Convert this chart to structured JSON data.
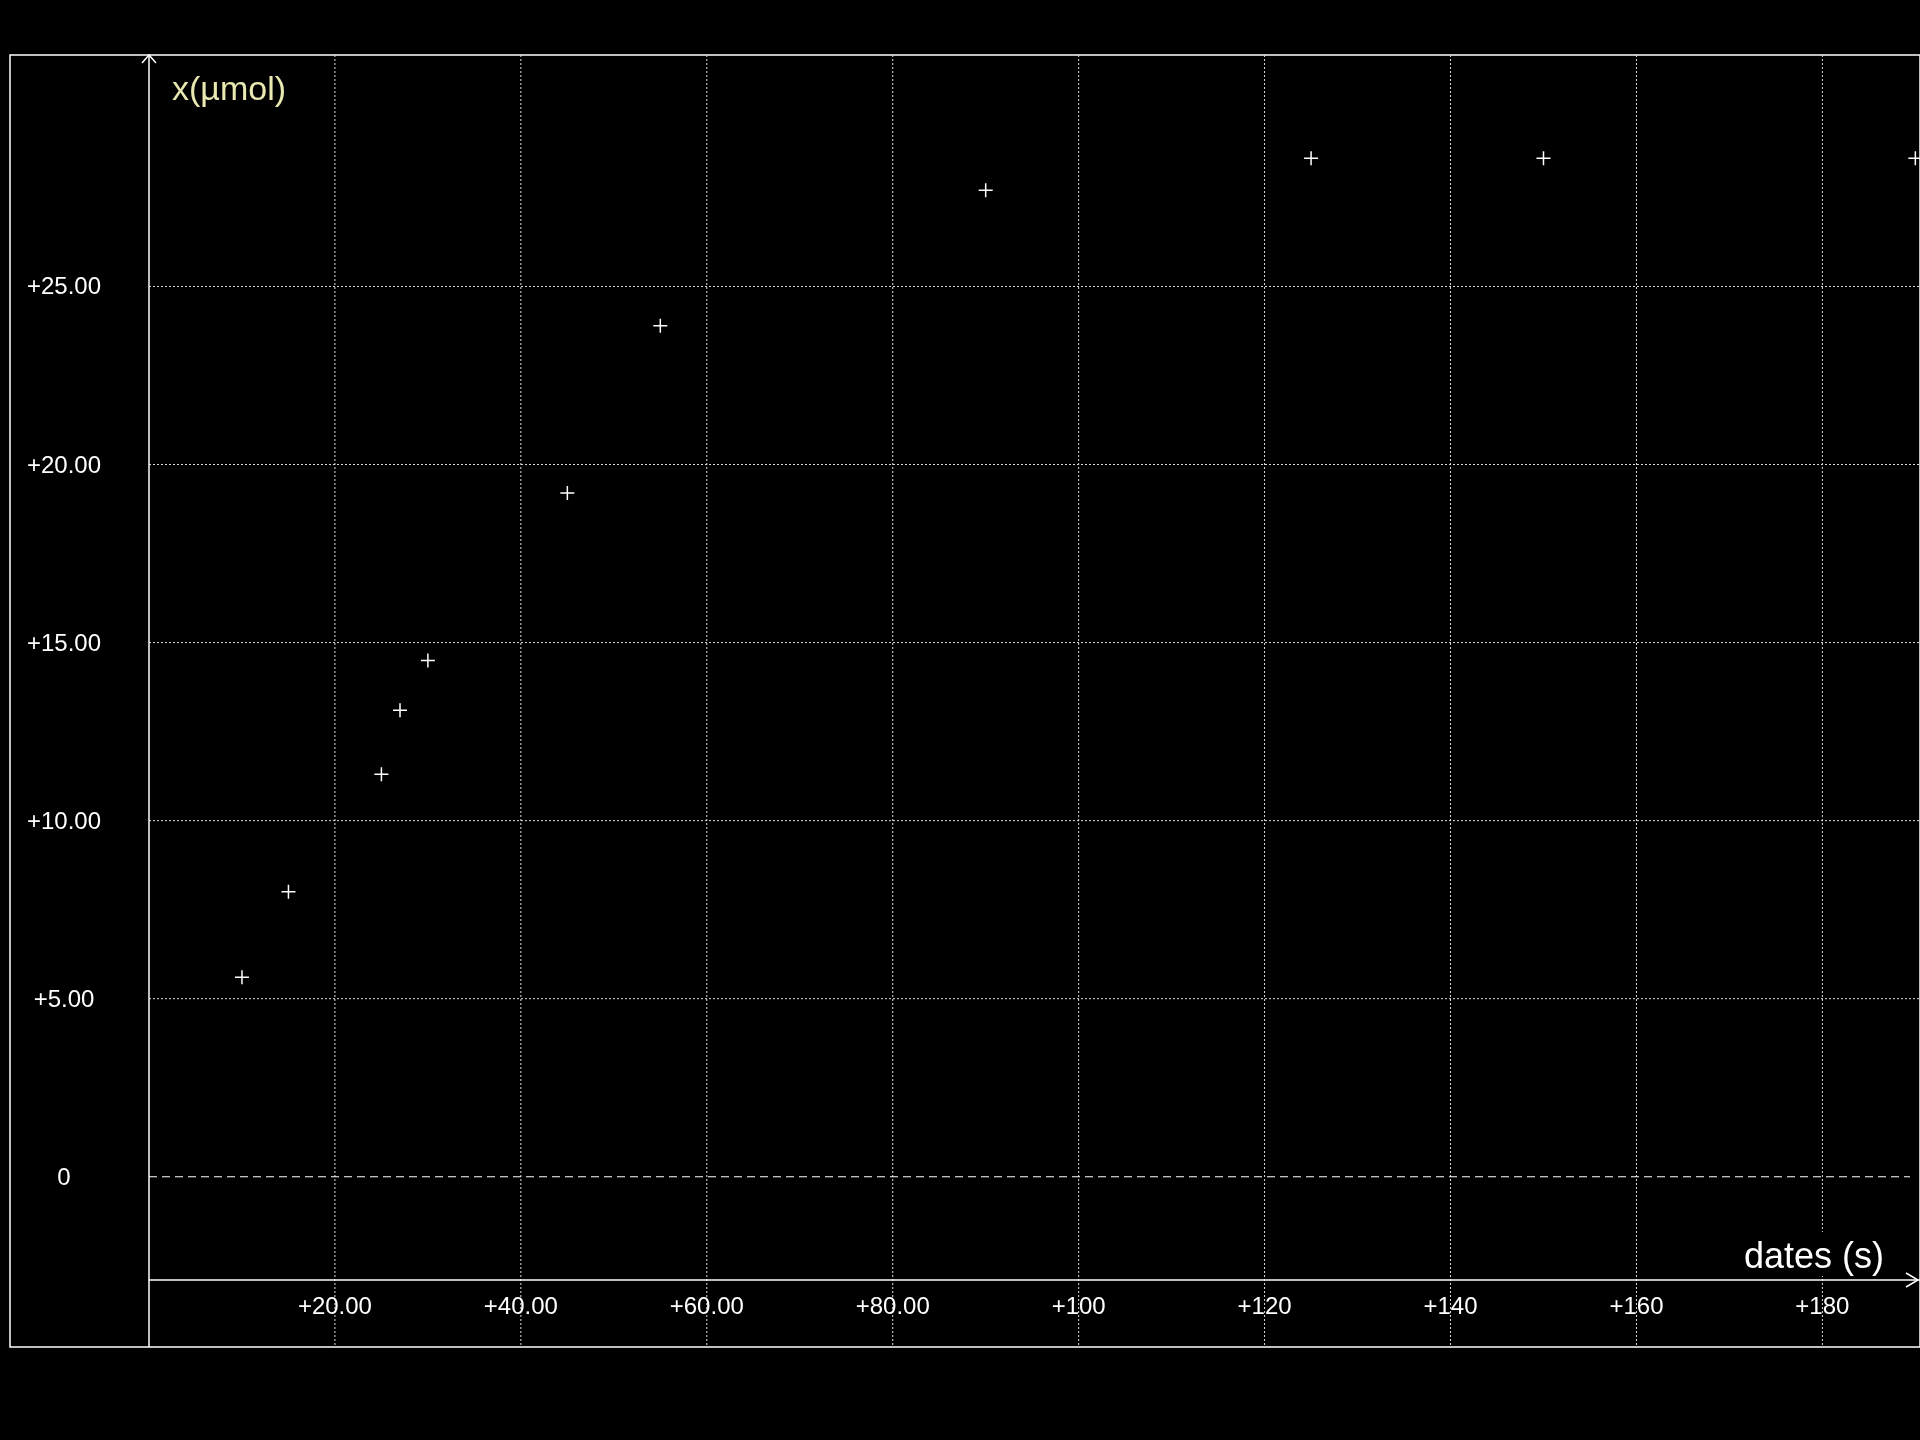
{
  "chart_data": {
    "type": "scatter",
    "xlabel": "dates (s)",
    "ylabel": "x(µmol)",
    "x": [
      10,
      15,
      25,
      27,
      30,
      45,
      55,
      90,
      125,
      150,
      190
    ],
    "series": [
      {
        "color": "#ffffff",
        "values": [
          5.6,
          8.0,
          11.3,
          13.1,
          14.5,
          19.2,
          23.9,
          27.7,
          28.6,
          28.6,
          28.6
        ]
      }
    ],
    "xlim": [
      0,
      190.5
    ],
    "ylim": [
      -2.9,
      31.5
    ],
    "xticks": [
      {
        "value": 20,
        "label": "+20.00"
      },
      {
        "value": 40,
        "label": "+40.00"
      },
      {
        "value": 60,
        "label": "+60.00"
      },
      {
        "value": 80,
        "label": "+80.00"
      },
      {
        "value": 100,
        "label": "+100"
      },
      {
        "value": 120,
        "label": "+120"
      },
      {
        "value": 140,
        "label": "+140"
      },
      {
        "value": 160,
        "label": "+160"
      },
      {
        "value": 180,
        "label": "+180"
      }
    ],
    "yticks": [
      0,
      {
        "value": 5,
        "label": "+5.00"
      },
      {
        "value": 10,
        "label": "+10.00"
      },
      {
        "value": 15,
        "label": "+15.00"
      },
      {
        "value": 20,
        "label": "+20.00"
      },
      {
        "value": 25,
        "label": "+25.00"
      }
    ],
    "ref_lines": [
      {
        "axis": "y",
        "value": 0,
        "line_style": "dashed",
        "color": "#ffffff"
      }
    ],
    "grid": true,
    "marker": "cross"
  }
}
